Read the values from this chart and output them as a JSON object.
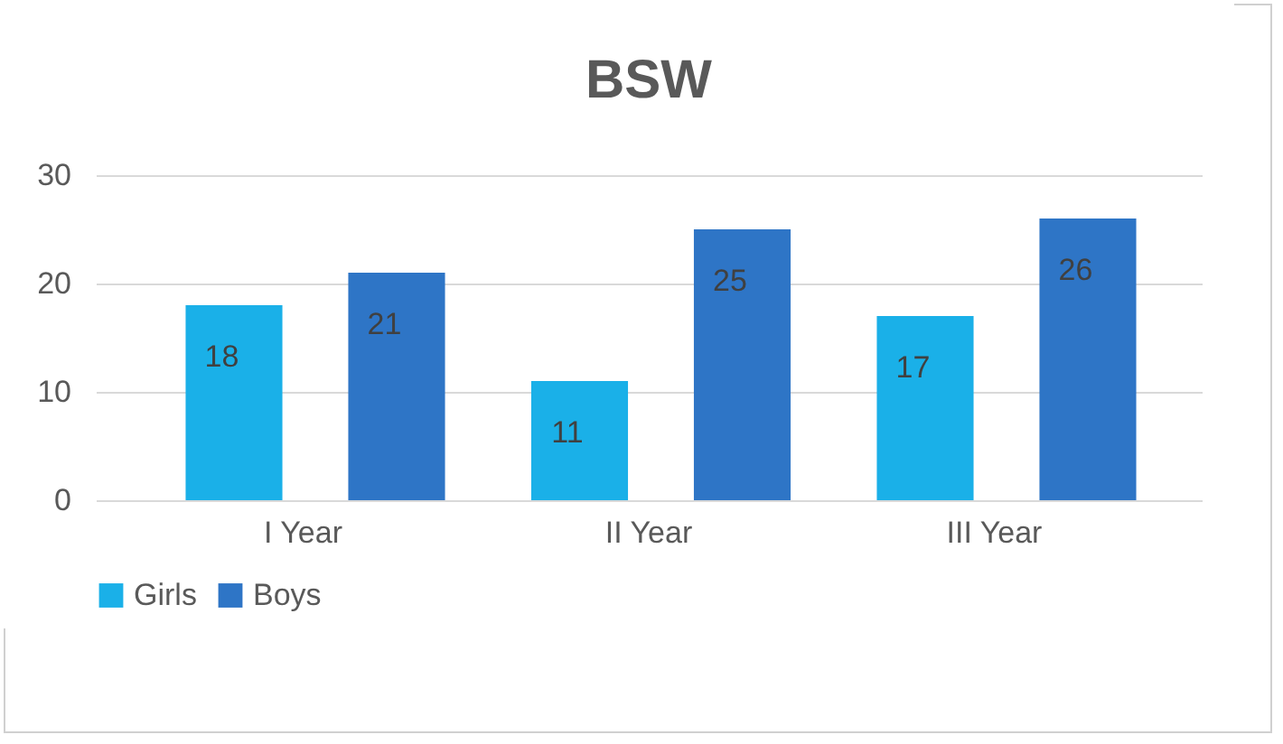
{
  "chart_data": {
    "type": "bar",
    "title": "BSW",
    "categories": [
      "I Year",
      "II Year",
      "III Year"
    ],
    "series": [
      {
        "name": "Girls",
        "color": "#1ab0e8",
        "values": [
          18,
          11,
          17
        ]
      },
      {
        "name": "Boys",
        "color": "#2e75c6",
        "values": [
          21,
          25,
          26
        ]
      }
    ],
    "ylim": [
      0,
      30
    ],
    "yticks": [
      0,
      10,
      20,
      30
    ],
    "grid": "y",
    "legend": "bottom",
    "data_labels": true
  }
}
